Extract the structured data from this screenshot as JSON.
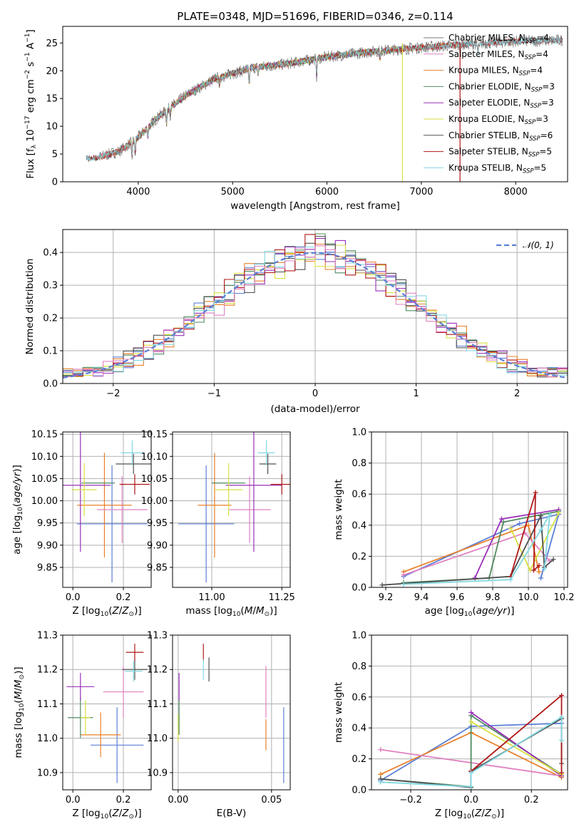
{
  "figure": {
    "title": "PLATE=0348, MJD=51696, FIBERID=0346, z=0.114"
  },
  "colors": {
    "Chabrier MILES": "#7a7a7a",
    "Salpeter MILES": "#e080c0",
    "Kroupa MILES": "#e8802a",
    "Chabrier ELODIE": "#4f8a5f",
    "Salpeter ELODIE": "#9a30b8",
    "Kroupa ELODIE": "#d8e040",
    "Chabrier STELIB": "#505050",
    "Salpeter STELIB": "#b01818",
    "Kroupa STELIB": "#80d8e0",
    "mv_base": "#5b7fd6"
  },
  "chart_data": [
    {
      "id": "spectrum",
      "type": "line",
      "xlabel": "wavelength [Angstrom, rest frame]",
      "ylabel": "Flux [f_λ 10^-17 erg cm^-2 s^-1 A^-1]",
      "xlim": [
        3200,
        8550
      ],
      "ylim": [
        0,
        28
      ],
      "xticks": [
        4000,
        5000,
        6000,
        7000,
        8000
      ],
      "yticks": [
        0,
        5,
        10,
        15,
        20,
        25
      ],
      "legend_position": "right",
      "legend": [
        {
          "base": "Chabrier MILES",
          "sub": "SSP",
          "val": "4"
        },
        {
          "base": "Salpeter MILES",
          "sub": "SSP",
          "val": "4"
        },
        {
          "base": "Kroupa MILES",
          "sub": "SSP",
          "val": "4"
        },
        {
          "base": "Chabrier ELODIE",
          "sub": "SSP",
          "val": "3"
        },
        {
          "base": "Salpeter ELODIE",
          "sub": "SSP",
          "val": "3"
        },
        {
          "base": "Kroupa ELODIE",
          "sub": "SSP",
          "val": "3"
        },
        {
          "base": "Chabrier STELIB",
          "sub": "SSP",
          "val": "6"
        },
        {
          "base": "Salpeter STELIB",
          "sub": "SSP",
          "val": "5"
        },
        {
          "base": "Kroupa STELIB",
          "sub": "SSP",
          "val": "5"
        }
      ],
      "continuum_points": [
        [
          3450,
          4.2
        ],
        [
          3600,
          4.5
        ],
        [
          3800,
          5.5
        ],
        [
          4000,
          8.0
        ],
        [
          4200,
          11.5
        ],
        [
          4500,
          15.5
        ],
        [
          4800,
          18.5
        ],
        [
          5200,
          20.5
        ],
        [
          5600,
          21.3
        ],
        [
          6000,
          22.5
        ],
        [
          6500,
          23.5
        ],
        [
          7000,
          24.2
        ],
        [
          7500,
          24.8
        ],
        [
          8000,
          25.3
        ],
        [
          8500,
          25.5
        ]
      ],
      "spikes": [
        {
          "x": 6800,
          "from": 0,
          "to": 25,
          "series": "Kroupa ELODIE"
        },
        {
          "x": 7410,
          "from": 0,
          "to": 25,
          "series": "Salpeter STELIB"
        }
      ]
    },
    {
      "id": "residual_histogram",
      "type": "area",
      "xlabel": "(data-model)/error",
      "ylabel": "Normed distribution",
      "xlim": [
        -2.5,
        2.5
      ],
      "ylim": [
        0,
        0.47
      ],
      "xticks": [
        -2,
        -1,
        0,
        1,
        2
      ],
      "yticks": [
        0.0,
        0.1,
        0.2,
        0.3,
        0.4
      ],
      "bin_width": 0.1,
      "legend": "𝒩(0, 1)",
      "legend_position": "top-right",
      "reference_curve": "standard normal pdf, dashed",
      "series_order": [
        "mv_base",
        "Kroupa MILES",
        "Chabrier ELODIE",
        "Salpeter ELODIE",
        "Kroupa ELODIE",
        "Chabrier STELIB",
        "Salpeter STELIB",
        "Kroupa STELIB",
        "Salpeter MILES"
      ]
    },
    {
      "id": "age_vs_Z",
      "type": "scatter",
      "xlabel": "Z [log10(Z/Z⊙)]",
      "ylabel": "age [log10(age/yr)]",
      "xlim": [
        -0.04,
        0.31
      ],
      "ylim": [
        9.805,
        10.155
      ],
      "xticks": [
        0.0,
        0.2
      ],
      "yticks": [
        9.85,
        9.9,
        9.95,
        10.0,
        10.05,
        10.1,
        10.15
      ],
      "points": [
        {
          "series": "mv_base",
          "x": 0.155,
          "xerr": 0.14,
          "y": 9.948,
          "yerr": 0.132
        },
        {
          "series": "Kroupa MILES",
          "x": 0.125,
          "xerr": 0.108,
          "y": 9.99,
          "yerr": 0.118
        },
        {
          "series": "Salpeter MILES",
          "x": 0.195,
          "xerr": 0.1,
          "y": 9.98,
          "yerr": 0.075
        },
        {
          "series": "Chabrier ELODIE",
          "x": 0.1,
          "xerr": 0.066,
          "y": 10.04,
          "yerr": 0.0
        },
        {
          "series": "Salpeter ELODIE",
          "x": 0.03,
          "xerr": 0.12,
          "y": 10.035,
          "yerr": 0.15
        },
        {
          "series": "Kroupa ELODIE",
          "x": 0.045,
          "xerr": 0.05,
          "y": 10.025,
          "yerr": 0.06
        },
        {
          "series": "Chabrier STELIB",
          "x": 0.24,
          "xerr": 0.07,
          "y": 10.083,
          "yerr": 0.023
        },
        {
          "series": "Salpeter STELIB",
          "x": 0.245,
          "xerr": 0.06,
          "y": 10.037,
          "yerr": 0.023
        },
        {
          "series": "Kroupa STELIB",
          "x": 0.235,
          "xerr": 0.045,
          "y": 10.108,
          "yerr": 0.028
        }
      ]
    },
    {
      "id": "age_vs_mass",
      "type": "scatter",
      "xlabel": "mass [log10(M/M⊙)]",
      "ylabel": "",
      "xlim": [
        10.86,
        11.28
      ],
      "ylim": [
        9.805,
        10.155
      ],
      "xticks": [
        11.0,
        11.25
      ],
      "yticks": [
        9.85,
        9.9,
        9.95,
        10.0,
        10.05,
        10.1,
        10.15
      ],
      "points": [
        {
          "series": "mv_base",
          "x": 10.98,
          "xerr": 0.1,
          "y": 9.948,
          "yerr": 0.132
        },
        {
          "series": "Kroupa MILES",
          "x": 11.01,
          "xerr": 0.06,
          "y": 9.99,
          "yerr": 0.118
        },
        {
          "series": "Salpeter MILES",
          "x": 11.135,
          "xerr": 0.075,
          "y": 9.98,
          "yerr": 0.075
        },
        {
          "series": "Chabrier ELODIE",
          "x": 11.06,
          "xerr": 0.06,
          "y": 10.04,
          "yerr": 0.0
        },
        {
          "series": "Salpeter ELODIE",
          "x": 11.15,
          "xerr": 0.1,
          "y": 10.035,
          "yerr": 0.15
        },
        {
          "series": "Kroupa ELODIE",
          "x": 11.06,
          "xerr": 0.05,
          "y": 10.025,
          "yerr": 0.06
        },
        {
          "series": "Chabrier STELIB",
          "x": 11.2,
          "xerr": 0.03,
          "y": 10.083,
          "yerr": 0.023
        },
        {
          "series": "Salpeter STELIB",
          "x": 11.25,
          "xerr": 0.04,
          "y": 10.037,
          "yerr": 0.023
        },
        {
          "series": "Kroupa STELIB",
          "x": 11.195,
          "xerr": 0.03,
          "y": 10.108,
          "yerr": 0.028
        }
      ]
    },
    {
      "id": "massweight_vs_age",
      "type": "line",
      "xlabel": "age [log10(age/yr)]",
      "ylabel": "mass weight",
      "xlim": [
        9.12,
        10.22
      ],
      "ylim": [
        0,
        1
      ],
      "xticks": [
        9.2,
        9.4,
        9.6,
        9.8,
        10.0,
        10.2
      ],
      "yticks": [
        0.0,
        0.2,
        0.4,
        0.6,
        0.8,
        1.0
      ],
      "series": [
        {
          "name": "mv_base",
          "points": [
            [
              9.3,
              0.07
            ],
            [
              9.95,
              0.41
            ],
            [
              10.17,
              0.47
            ],
            [
              10.07,
              0.06
            ]
          ]
        },
        {
          "name": "Kroupa MILES",
          "points": [
            [
              9.3,
              0.1
            ],
            [
              10.0,
              0.4
            ],
            [
              10.06,
              0.1
            ]
          ]
        },
        {
          "name": "Salpeter MILES",
          "points": [
            [
              9.3,
              0.08
            ],
            [
              9.98,
              0.35
            ],
            [
              10.12,
              0.17
            ]
          ]
        },
        {
          "name": "Chabrier ELODIE",
          "points": [
            [
              9.3,
              0.03
            ],
            [
              9.78,
              0.06
            ],
            [
              9.86,
              0.42
            ],
            [
              10.17,
              0.49
            ]
          ]
        },
        {
          "name": "Salpeter ELODIE",
          "points": [
            [
              9.7,
              0.06
            ],
            [
              9.85,
              0.44
            ],
            [
              10.17,
              0.5
            ]
          ]
        },
        {
          "name": "Kroupa ELODIE",
          "points": [
            [
              9.9,
              0.38
            ],
            [
              10.01,
              0.11
            ],
            [
              10.17,
              0.48
            ]
          ]
        },
        {
          "name": "Chabrier STELIB",
          "points": [
            [
              9.18,
              0.015
            ],
            [
              9.9,
              0.07
            ],
            [
              10.07,
              0.46
            ],
            [
              10.09,
              0.13
            ],
            [
              10.14,
              0.18
            ]
          ]
        },
        {
          "name": "Salpeter STELIB",
          "points": [
            [
              9.9,
              0.07
            ],
            [
              10.04,
              0.61
            ],
            [
              10.03,
              0.11
            ],
            [
              10.06,
              0.14
            ]
          ]
        },
        {
          "name": "Kroupa STELIB",
          "points": [
            [
              9.3,
              0.02
            ],
            [
              9.9,
              0.05
            ],
            [
              10.07,
              0.37
            ],
            [
              10.12,
              0.47
            ],
            [
              10.09,
              0.12
            ]
          ]
        }
      ]
    },
    {
      "id": "mass_vs_Z",
      "type": "scatter",
      "xlabel": "Z [log10(Z/Z⊙)]",
      "ylabel": "mass [log10(M/M⊙)]",
      "xlim": [
        -0.04,
        0.31
      ],
      "ylim": [
        10.85,
        11.3
      ],
      "xticks": [
        0.0,
        0.2
      ],
      "yticks": [
        10.9,
        11.0,
        11.1,
        11.2,
        11.3
      ],
      "points": [
        {
          "series": "mv_base",
          "x": 0.175,
          "xerr": 0.105,
          "y": 10.98,
          "yerr": 0.11
        },
        {
          "series": "Kroupa MILES",
          "x": 0.11,
          "xerr": 0.08,
          "y": 11.01,
          "yerr": 0.065
        },
        {
          "series": "Salpeter MILES",
          "x": 0.2,
          "xerr": 0.08,
          "y": 11.135,
          "yerr": 0.075
        },
        {
          "series": "Chabrier ELODIE",
          "x": 0.03,
          "xerr": 0.05,
          "y": 11.06,
          "yerr": 0.06
        },
        {
          "series": "Salpeter ELODIE",
          "x": 0.03,
          "xerr": 0.055,
          "y": 11.15,
          "yerr": 0.04
        },
        {
          "series": "Kroupa ELODIE",
          "x": 0.05,
          "xerr": 0.02,
          "y": 11.06,
          "yerr": 0.05
        },
        {
          "series": "Chabrier STELIB",
          "x": 0.245,
          "xerr": 0.05,
          "y": 11.2,
          "yerr": 0.03
        },
        {
          "series": "Salpeter STELIB",
          "x": 0.245,
          "xerr": 0.035,
          "y": 11.25,
          "yerr": 0.025
        },
        {
          "series": "Kroupa STELIB",
          "x": 0.24,
          "xerr": 0.035,
          "y": 11.195,
          "yerr": 0.03
        }
      ]
    },
    {
      "id": "mass_vs_ebv",
      "type": "scatter",
      "xlabel": "E(B-V)",
      "ylabel": "",
      "xlim": [
        -0.003,
        0.06
      ],
      "ylim": [
        10.85,
        11.3
      ],
      "xticks": [
        0.0,
        0.05
      ],
      "yticks": [
        10.9,
        11.0,
        11.1,
        11.2,
        11.3
      ],
      "points": [
        {
          "series": "mv_base",
          "x": 0.0565,
          "y": 10.98,
          "yerr": 0.11
        },
        {
          "series": "Kroupa MILES",
          "x": 0.047,
          "y": 11.01,
          "yerr": 0.045
        },
        {
          "series": "Salpeter MILES",
          "x": 0.047,
          "y": 11.135,
          "yerr": 0.075
        },
        {
          "series": "Chabrier ELODIE",
          "x": 0.0005,
          "y": 11.06,
          "yerr": 0.05
        },
        {
          "series": "Salpeter ELODIE",
          "x": 0.0005,
          "y": 11.15,
          "yerr": 0.04
        },
        {
          "series": "Kroupa ELODIE",
          "x": 0.0,
          "y": 11.03,
          "yerr": 0.04
        },
        {
          "series": "Chabrier STELIB",
          "x": 0.0165,
          "y": 11.2,
          "yerr": 0.035
        },
        {
          "series": "Salpeter STELIB",
          "x": 0.0135,
          "y": 11.25,
          "yerr": 0.025
        },
        {
          "series": "Kroupa STELIB",
          "x": 0.0135,
          "y": 11.2,
          "yerr": 0.03
        }
      ]
    },
    {
      "id": "massweight_vs_Z",
      "type": "line",
      "xlabel": "Z [log10(Z/Z⊙)]",
      "ylabel": "mass weight",
      "xlim": [
        -0.33,
        0.32
      ],
      "ylim": [
        0,
        1
      ],
      "xticks": [
        -0.2,
        0.0,
        0.2
      ],
      "yticks": [
        0.0,
        0.2,
        0.4,
        0.6,
        0.8,
        1.0
      ],
      "series": [
        {
          "name": "mv_base",
          "points": [
            [
              -0.3,
              0.06
            ],
            [
              0.0,
              0.41
            ],
            [
              0.3,
              0.43
            ]
          ]
        },
        {
          "name": "Kroupa MILES",
          "points": [
            [
              -0.3,
              0.1
            ],
            [
              0.0,
              0.37
            ],
            [
              0.3,
              0.08
            ]
          ]
        },
        {
          "name": "Salpeter MILES",
          "points": [
            [
              -0.3,
              0.26
            ],
            [
              0.3,
              0.09
            ]
          ]
        },
        {
          "name": "Chabrier ELODIE",
          "points": [
            [
              -0.3,
              0.07
            ],
            [
              0.0,
              0.02
            ],
            [
              0.0,
              0.48
            ],
            [
              0.3,
              0.1
            ]
          ]
        },
        {
          "name": "Salpeter ELODIE",
          "points": [
            [
              0.0,
              0.5
            ],
            [
              0.3,
              0.09
            ]
          ]
        },
        {
          "name": "Kroupa ELODIE",
          "points": [
            [
              0.0,
              0.44
            ],
            [
              0.3,
              0.1
            ]
          ]
        },
        {
          "name": "Chabrier STELIB",
          "points": [
            [
              -0.3,
              0.07
            ],
            [
              0.0,
              0.015
            ],
            [
              0.0,
              0.12
            ],
            [
              0.3,
              0.46
            ],
            [
              0.3,
              0.17
            ]
          ]
        },
        {
          "name": "Salpeter STELIB",
          "points": [
            [
              0.0,
              0.12
            ],
            [
              0.3,
              0.61
            ],
            [
              0.3,
              0.11
            ]
          ]
        },
        {
          "name": "Kroupa STELIB",
          "points": [
            [
              -0.3,
              0.05
            ],
            [
              0.0,
              0.02
            ],
            [
              0.0,
              0.11
            ],
            [
              0.3,
              0.47
            ],
            [
              0.3,
              0.32
            ]
          ]
        }
      ]
    }
  ]
}
